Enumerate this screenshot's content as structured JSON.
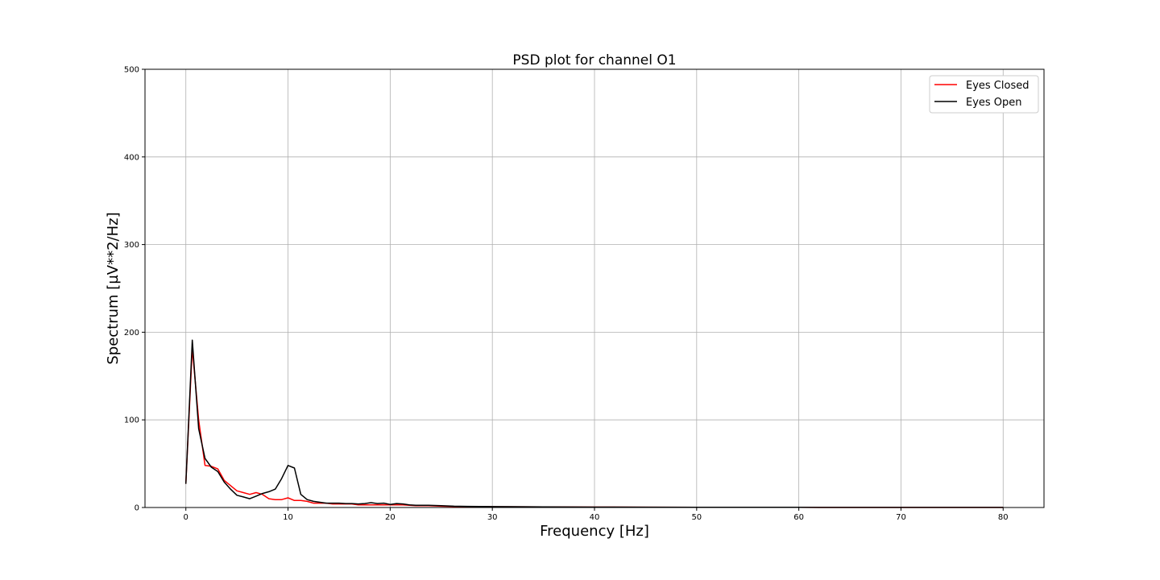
{
  "chart_data": {
    "type": "line",
    "title": "PSD plot for channel O1",
    "xlabel": "Frequency [Hz]",
    "ylabel": "Spectrum [µV**2/Hz]",
    "xlim": [
      -4,
      84
    ],
    "ylim": [
      0,
      500
    ],
    "xticks": [
      0,
      10,
      20,
      30,
      40,
      50,
      60,
      70,
      80
    ],
    "yticks": [
      0,
      100,
      200,
      300,
      400,
      500
    ],
    "grid": true,
    "legend_position": "top-right",
    "series": [
      {
        "name": "Eyes Closed",
        "color": "#ff0000",
        "x": [
          0,
          0.625,
          1.25,
          1.875,
          2.5,
          3.125,
          3.75,
          4.375,
          5,
          5.625,
          6.25,
          6.875,
          7.5,
          8.125,
          8.75,
          9.375,
          10,
          10.625,
          11.25,
          11.875,
          12.5,
          13.125,
          13.75,
          14.375,
          15,
          15.625,
          16.25,
          16.875,
          17.5,
          18.125,
          18.75,
          19.375,
          20,
          20.625,
          21.25,
          21.875,
          22.5,
          23.75,
          25,
          26.25,
          27.5,
          30,
          35,
          40,
          45,
          50,
          55,
          60,
          65,
          70,
          75,
          80
        ],
        "y": [
          27,
          182,
          100,
          48,
          47,
          44,
          31,
          25,
          19,
          17,
          15,
          17,
          15,
          10,
          9,
          9,
          11,
          8,
          8,
          7,
          5,
          5,
          5,
          4,
          4,
          4,
          4,
          3,
          3,
          3,
          3,
          3,
          3,
          3,
          3,
          2.5,
          2,
          2,
          1.5,
          1.2,
          1,
          0.8,
          0.6,
          0.5,
          0.4,
          0.3,
          0.2,
          0.2,
          0.1,
          0.1,
          0.1,
          0.1
        ]
      },
      {
        "name": "Eyes Open",
        "color": "#000000",
        "x": [
          0,
          0.625,
          1.25,
          1.875,
          2.5,
          3.125,
          3.75,
          4.375,
          5,
          5.625,
          6.25,
          6.875,
          7.5,
          8.125,
          8.75,
          9.375,
          10,
          10.625,
          11.25,
          11.875,
          12.5,
          13.125,
          13.75,
          14.375,
          15,
          15.625,
          16.25,
          16.875,
          17.5,
          18.125,
          18.75,
          19.375,
          20,
          20.625,
          21.25,
          21.875,
          22.5,
          23.75,
          25,
          26.25,
          27.5,
          30,
          35,
          40,
          45,
          50,
          55,
          60,
          65,
          70,
          75,
          80
        ],
        "y": [
          27,
          191,
          90,
          56,
          46,
          41,
          29,
          21,
          14,
          12,
          10,
          13,
          16,
          18,
          21,
          33,
          48,
          45,
          15,
          9,
          7,
          6,
          5,
          5,
          5,
          4.5,
          4.5,
          4,
          4.5,
          5.5,
          4.5,
          5,
          3.5,
          4.5,
          4,
          3,
          2.5,
          2.5,
          2,
          1.5,
          1.3,
          1,
          0.7,
          0.5,
          0.4,
          0.3,
          0.2,
          0.2,
          0.1,
          0.1,
          0.1,
          0.1
        ]
      }
    ]
  }
}
